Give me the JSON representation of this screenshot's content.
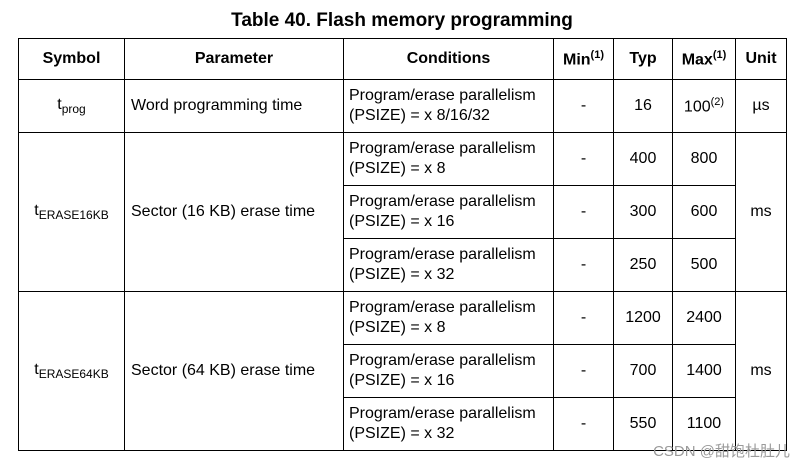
{
  "title": "Table 40. Flash memory programming",
  "table": {
    "header": [
      "Symbol",
      "Parameter",
      "Conditions",
      {
        "text": "Min",
        "sup": "(1)"
      },
      "Typ",
      {
        "text": "Max",
        "sup": "(1)"
      },
      "Unit"
    ],
    "groups": [
      {
        "symbol": {
          "main": "t",
          "sub": "prog"
        },
        "parameter": "Word programming time",
        "unit": "µs",
        "rows": [
          {
            "conditions": [
              "Program/erase parallelism",
              "(PSIZE) = x 8/16/32"
            ],
            "min": "-",
            "typ": 16,
            "max": {
              "text": "100",
              "sup": "(2)"
            }
          }
        ]
      },
      {
        "symbol": {
          "main": "t",
          "sub": "ERASE16KB"
        },
        "parameter": "Sector (16 KB) erase time",
        "unit": "ms",
        "rows": [
          {
            "conditions": [
              "Program/erase parallelism",
              "(PSIZE) = x 8"
            ],
            "min": "-",
            "typ": 400,
            "max": 800
          },
          {
            "conditions": [
              "Program/erase parallelism",
              "(PSIZE) = x 16"
            ],
            "min": "-",
            "typ": 300,
            "max": 600
          },
          {
            "conditions": [
              "Program/erase parallelism",
              "(PSIZE) = x 32"
            ],
            "min": "-",
            "typ": 250,
            "max": 500
          }
        ]
      },
      {
        "symbol": {
          "main": "t",
          "sub": "ERASE64KB"
        },
        "parameter": "Sector (64 KB) erase time",
        "unit": "ms",
        "rows": [
          {
            "conditions": [
              "Program/erase parallelism",
              "(PSIZE) = x 8"
            ],
            "min": "-",
            "typ": 1200,
            "max": 2400
          },
          {
            "conditions": [
              "Program/erase parallelism",
              "(PSIZE) = x 16"
            ],
            "min": "-",
            "typ": 700,
            "max": 1400
          },
          {
            "conditions": [
              "Program/erase parallelism",
              "(PSIZE) = x 32"
            ],
            "min": "-",
            "typ": 550,
            "max": 1100
          }
        ]
      }
    ]
  },
  "watermark": "CSDN @甜饱杜肚儿"
}
